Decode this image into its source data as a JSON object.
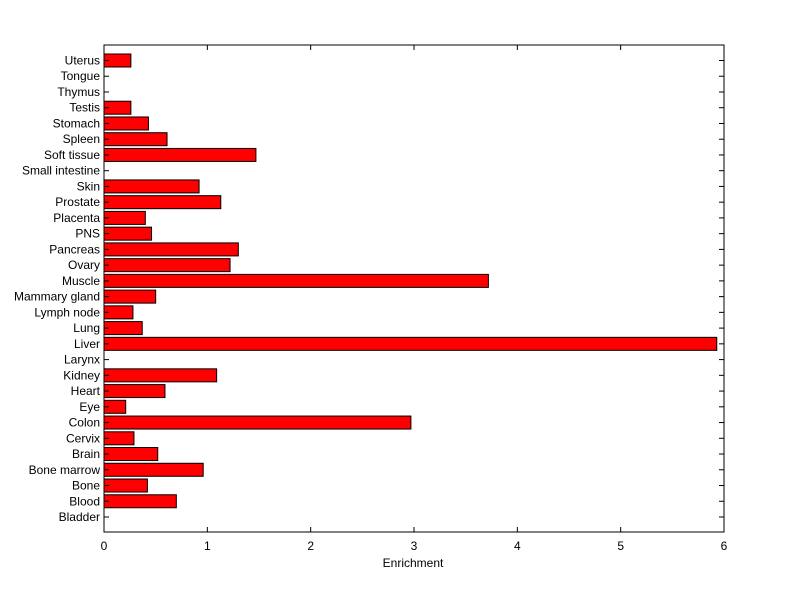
{
  "chart_data": {
    "type": "bar",
    "orientation": "horizontal",
    "title": "",
    "xlabel": "Enrichment",
    "ylabel": "",
    "xlim": [
      0,
      6
    ],
    "xticks": [
      "0",
      "1",
      "2",
      "3",
      "4",
      "5",
      "6"
    ],
    "grid": false,
    "bar_color": "#ff0000",
    "edge_color": "#000000",
    "categories": [
      "Bladder",
      "Blood",
      "Bone",
      "Bone marrow",
      "Brain",
      "Cervix",
      "Colon",
      "Eye",
      "Heart",
      "Kidney",
      "Larynx",
      "Liver",
      "Lung",
      "Lymph node",
      "Mammary gland",
      "Muscle",
      "Ovary",
      "Pancreas",
      "PNS",
      "Placenta",
      "Prostate",
      "Skin",
      "Small intestine",
      "Soft tissue",
      "Spleen",
      "Stomach",
      "Testis",
      "Thymus",
      "Tongue",
      "Uterus"
    ],
    "values": [
      0,
      0.7,
      0.42,
      0.96,
      0.52,
      0.29,
      2.97,
      0.21,
      0.59,
      1.09,
      0,
      5.93,
      0.37,
      0.28,
      0.5,
      3.72,
      1.22,
      1.3,
      0.46,
      0.4,
      1.13,
      0.92,
      0,
      1.47,
      0.61,
      0.43,
      0.26,
      0,
      0,
      0.26
    ]
  }
}
